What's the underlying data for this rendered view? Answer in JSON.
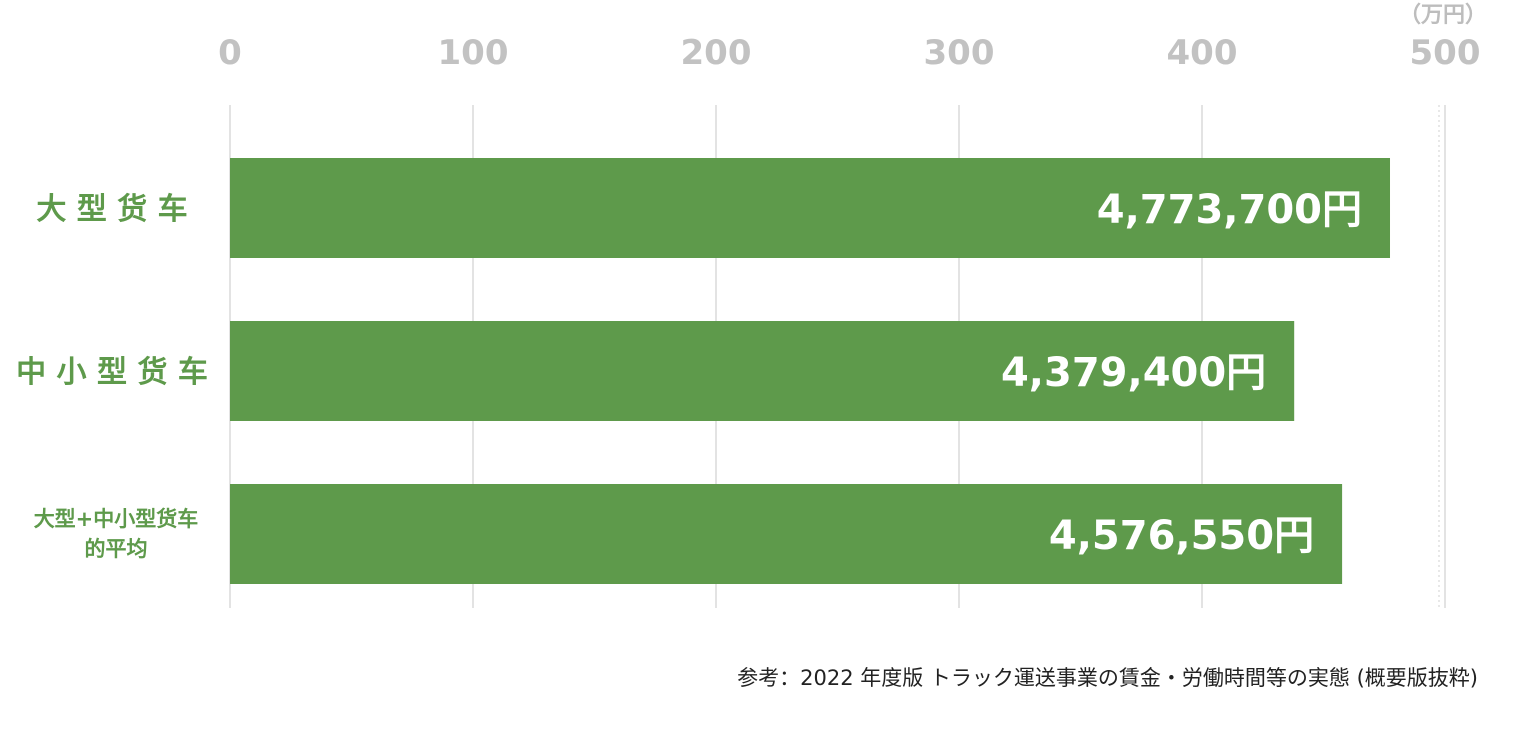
{
  "chart_data": {
    "type": "bar",
    "orientation": "horizontal",
    "unit": "（万円）",
    "categories": [
      [
        "大 型 货 车"
      ],
      [
        "中 小 型 货 车"
      ],
      [
        "大型+中小型货车",
        "的平均"
      ]
    ],
    "values": [
      477.37,
      437.94,
      457.655
    ],
    "value_labels": [
      "4,773,700円",
      "4,379,400円",
      "4,576,550円"
    ],
    "xlim": [
      0,
      500
    ],
    "xticks": [
      "0",
      "100",
      "200",
      "300",
      "400",
      "500"
    ],
    "xtick_values": [
      0,
      100,
      200,
      300,
      400,
      500
    ],
    "grid": true,
    "bar_color": "#5e9a4b",
    "label_color": "#5e9a4b",
    "tick_color": "#c2c2c2",
    "grid_color": "#d0d0d0"
  },
  "source_note": "参考：2022 年度版 トラック運送事業の賃金・労働時間等の実態 (概要版抜粋)"
}
